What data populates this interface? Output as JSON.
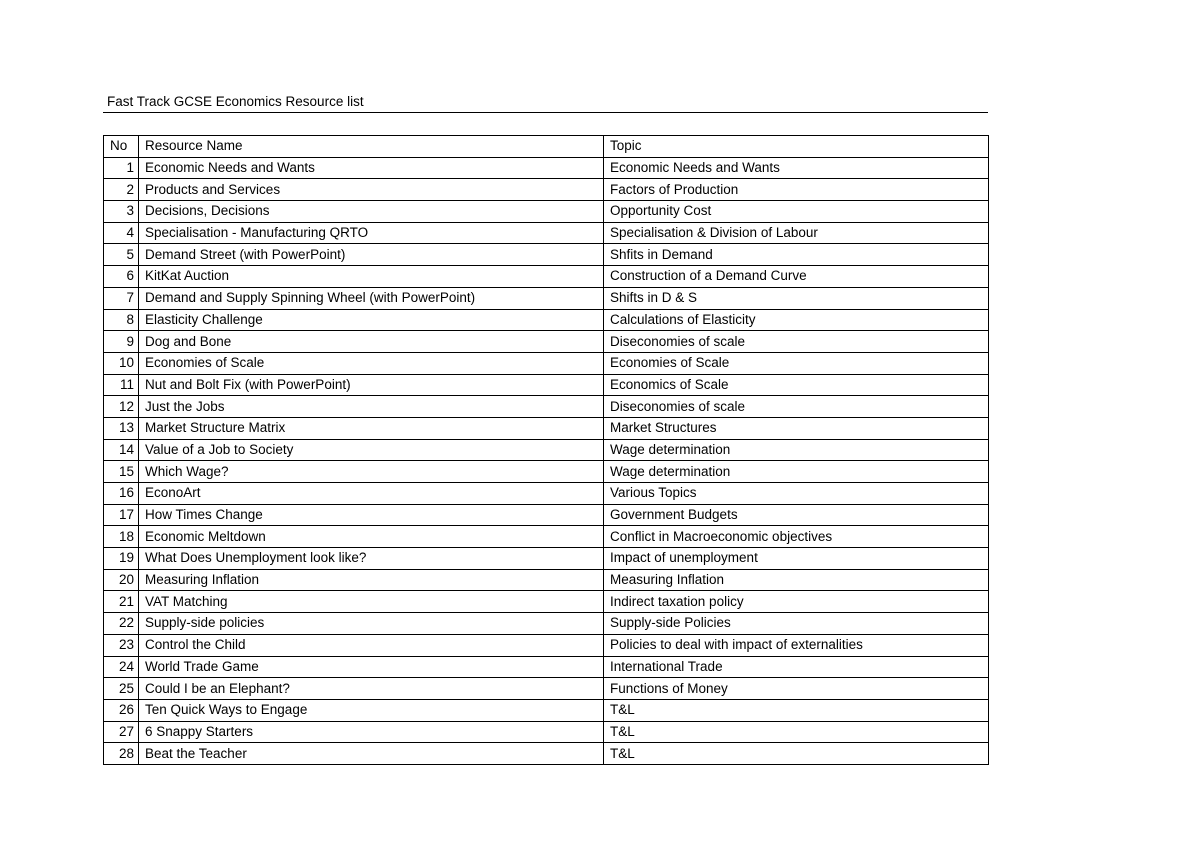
{
  "title": "Fast Track GCSE Economics Resource list",
  "table": {
    "headers": [
      "No",
      "Resource Name",
      "Topic"
    ],
    "rows": [
      [
        "1",
        "Economic Needs and Wants",
        "Economic Needs and Wants"
      ],
      [
        "2",
        "Products and Services",
        "Factors of Production"
      ],
      [
        "3",
        "Decisions, Decisions",
        "Opportunity Cost"
      ],
      [
        "4",
        "Specialisation - Manufacturing QRTO",
        "Specialisation & Division of Labour"
      ],
      [
        "5",
        "Demand Street (with PowerPoint)",
        "Shfits in Demand"
      ],
      [
        "6",
        "KitKat Auction",
        "Construction of a Demand Curve"
      ],
      [
        "7",
        "Demand and Supply Spinning Wheel (with PowerPoint)",
        "Shifts in D & S"
      ],
      [
        "8",
        "Elasticity Challenge",
        "Calculations of Elasticity"
      ],
      [
        "9",
        "Dog and Bone",
        "Diseconomies of scale"
      ],
      [
        "10",
        "Economies of Scale",
        "Economies of Scale"
      ],
      [
        "11",
        "Nut and Bolt Fix (with PowerPoint)",
        "Economics of Scale"
      ],
      [
        "12",
        "Just the Jobs",
        "Diseconomies of scale"
      ],
      [
        "13",
        "Market Structure Matrix",
        "Market Structures"
      ],
      [
        "14",
        "Value of a Job to Society",
        "Wage determination"
      ],
      [
        "15",
        "Which Wage?",
        "Wage determination"
      ],
      [
        "16",
        "EconoArt",
        "Various Topics"
      ],
      [
        "17",
        "How Times Change",
        "Government Budgets"
      ],
      [
        "18",
        "Economic Meltdown",
        "Conflict in Macroeconomic objectives"
      ],
      [
        "19",
        "What Does Unemployment look like?",
        "Impact of unemployment"
      ],
      [
        "20",
        "Measuring Inflation",
        "Measuring Inflation"
      ],
      [
        "21",
        "VAT Matching",
        "Indirect taxation policy"
      ],
      [
        "22",
        "Supply-side policies",
        "Supply-side Policies"
      ],
      [
        "23",
        "Control the Child",
        "Policies to deal with impact of externalities"
      ],
      [
        "24",
        "World Trade Game",
        "International Trade"
      ],
      [
        "25",
        "Could I be an Elephant?",
        "Functions of Money"
      ],
      [
        "26",
        "Ten Quick Ways to Engage",
        "T&L"
      ],
      [
        "27",
        "6 Snappy Starters",
        "T&L"
      ],
      [
        "28",
        "Beat the Teacher",
        "T&L"
      ]
    ]
  }
}
